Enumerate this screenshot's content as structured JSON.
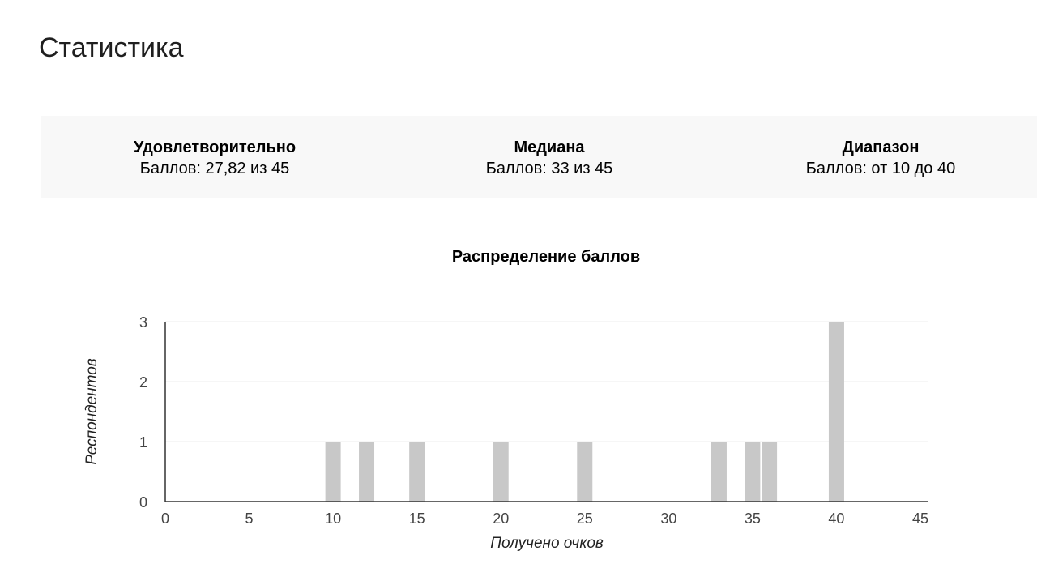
{
  "page": {
    "title": "Статистика"
  },
  "summary": {
    "items": [
      {
        "label": "Удовлетворительно",
        "value": "Баллов: 27,82 из 45"
      },
      {
        "label": "Медиана",
        "value": "Баллов: 33 из 45"
      },
      {
        "label": "Диапазон",
        "value": "Баллов: от 10 до 40"
      }
    ]
  },
  "colors": {
    "bar": "#c8c8c8",
    "grid": "#ececec",
    "axis": "#333333",
    "summary_bg": "#f8f8f8"
  },
  "chart_data": {
    "type": "bar",
    "title": "Распределение баллов",
    "xlabel": "Получено очков",
    "ylabel": "Респондентов",
    "xlim": [
      0,
      45
    ],
    "ylim": [
      0,
      3
    ],
    "x_ticks": [
      0,
      5,
      10,
      15,
      20,
      25,
      30,
      35,
      40,
      45
    ],
    "y_ticks": [
      0,
      1,
      2,
      3
    ],
    "grid": true,
    "legend": "none",
    "x": [
      10,
      12,
      15,
      20,
      25,
      33,
      35,
      36,
      40
    ],
    "values": [
      1,
      1,
      1,
      1,
      1,
      1,
      1,
      1,
      3
    ]
  }
}
